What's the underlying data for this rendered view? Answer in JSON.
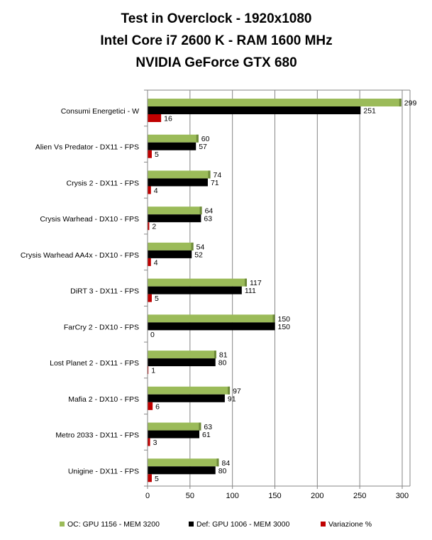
{
  "chart_data": {
    "type": "bar",
    "orientation": "horizontal",
    "title_lines": [
      "Test in Overclock - 1920x1080",
      "Intel Core i7 2600 K - RAM 1600 MHz",
      "NVIDIA GeForce GTX 680"
    ],
    "categories": [
      "Consumi Energetici - W",
      "Alien Vs Predator - DX11 - FPS",
      "Crysis 2 - DX11 - FPS",
      "Crysis Warhead - DX10 - FPS",
      "Crysis Warhead AA4x - DX10 - FPS",
      "DiRT 3 - DX11 - FPS",
      "FarCry 2 - DX10 - FPS",
      "Lost Planet 2 - DX11 - FPS",
      "Mafia 2 - DX10 - FPS",
      "Metro 2033 - DX11 - FPS",
      "Unigine - DX11 - FPS"
    ],
    "series": [
      {
        "name": "OC: GPU 1156 - MEM 3200",
        "color": "#9bbb59",
        "values": [
          299,
          60,
          74,
          64,
          54,
          117,
          150,
          81,
          97,
          63,
          84
        ]
      },
      {
        "name": "Def: GPU 1006 - MEM 3000",
        "color": "#000000",
        "values": [
          251,
          57,
          71,
          63,
          52,
          111,
          150,
          80,
          91,
          61,
          80
        ]
      },
      {
        "name": "Variazione %",
        "color": "#c00000",
        "values": [
          16,
          5,
          4,
          2,
          4,
          5,
          0,
          1,
          6,
          3,
          5
        ]
      }
    ],
    "xlim": [
      0,
      300
    ],
    "xticks": [
      0,
      50,
      100,
      150,
      200,
      250,
      300
    ],
    "grid": true,
    "legend_position": "bottom"
  }
}
